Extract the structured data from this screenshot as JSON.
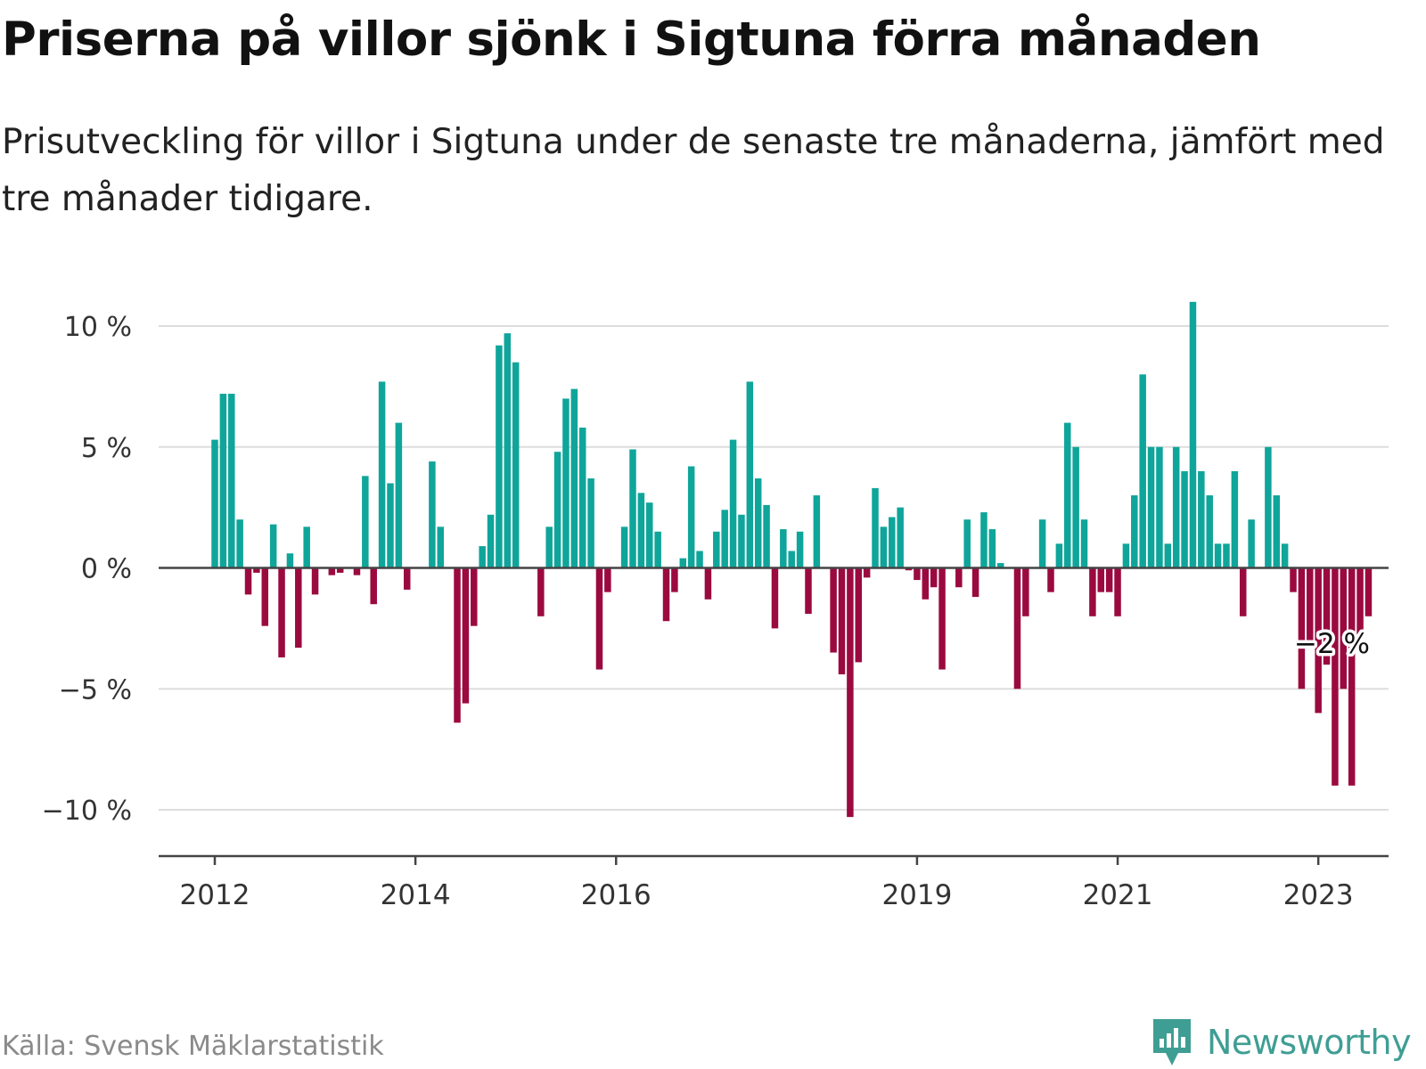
{
  "header": {
    "title": "Priserna på villor sjönk i Sigtuna förra månaden",
    "subtitle": "Prisutveckling för villor i Sigtuna under de senaste tre månaderna, jämfört med tre månader tidigare."
  },
  "footer": {
    "source": "Källa: Svensk Mäklarstatistik",
    "brand": "Newsworthy"
  },
  "colors": {
    "positive": "#0fa59a",
    "negative": "#9b0a3f",
    "grid": "#dddddd",
    "axis": "#444444",
    "brand": "#3f9e94"
  },
  "chart_data": {
    "type": "bar",
    "x_start": "2012-01",
    "x_step": "1 month",
    "y_unit": "%",
    "ylim": [
      -12,
      12
    ],
    "y_ticks": [
      10,
      5,
      0,
      -5,
      -10
    ],
    "y_tick_labels": [
      "10 %",
      "5 %",
      "0 %",
      "−5 %",
      "−10 %"
    ],
    "x_tick_labels": [
      "2012",
      "2014",
      "2016",
      "2019",
      "2021",
      "2023"
    ],
    "grid": true,
    "annotation": {
      "text": "−2 %",
      "value": -2
    },
    "values": [
      5.3,
      7.2,
      7.2,
      2.0,
      -1.1,
      -0.2,
      -2.4,
      1.8,
      -3.7,
      0.6,
      -3.3,
      1.7,
      -1.1,
      0.0,
      -0.3,
      -0.2,
      0.0,
      -0.3,
      3.8,
      -1.5,
      7.7,
      3.5,
      6.0,
      -0.9,
      0.0,
      0.0,
      4.4,
      1.7,
      0.0,
      -6.4,
      -5.6,
      -2.4,
      0.9,
      2.2,
      9.2,
      9.7,
      8.5,
      0.0,
      0.0,
      -2.0,
      1.7,
      4.8,
      7.0,
      7.4,
      5.8,
      3.7,
      -4.2,
      -1.0,
      0.0,
      1.7,
      4.9,
      3.1,
      2.7,
      1.5,
      -2.2,
      -1.0,
      0.4,
      4.2,
      0.7,
      -1.3,
      1.5,
      2.4,
      5.3,
      2.2,
      7.7,
      3.7,
      2.6,
      -2.5,
      1.6,
      0.7,
      1.5,
      -1.9,
      3.0,
      0.0,
      -3.5,
      -4.4,
      -10.3,
      -3.9,
      -0.4,
      3.3,
      1.7,
      2.1,
      2.5,
      -0.1,
      -0.5,
      -1.3,
      -0.8,
      -4.2,
      0.0,
      -0.8,
      2.0,
      -1.2,
      2.3,
      1.6,
      0.2,
      0.0,
      -5.0,
      -2.0,
      0.0,
      2.0,
      -1.0,
      1.0,
      6.0,
      5.0,
      2.0,
      -2.0,
      -1.0,
      -1.0,
      -2.0,
      1.0,
      3.0,
      8.0,
      5.0,
      5.0,
      1.0,
      5.0,
      4.0,
      11.0,
      4.0,
      3.0,
      1.0,
      1.0,
      4.0,
      -2.0,
      2.0,
      0.0,
      5.0,
      3.0,
      1.0,
      -1.0,
      -5.0,
      -3.0,
      -6.0,
      -4.0,
      -9.0,
      -5.0,
      -9.0,
      -3.0,
      -2.0
    ]
  }
}
